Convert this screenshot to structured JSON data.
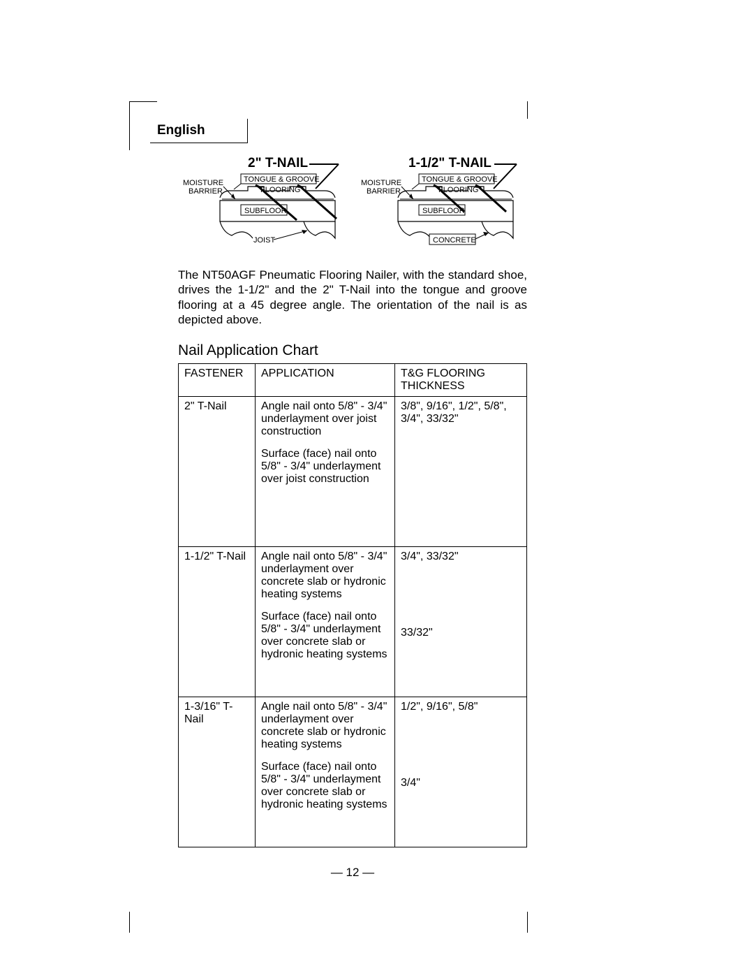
{
  "lang_label": "English",
  "diagram_left": {
    "title": "2\" T-NAIL",
    "moisture": "MOISTURE",
    "barrier": "BARRIER",
    "tg1": "TONGUE & GROOVE",
    "tg2": "FLOORING",
    "subfloor": "SUBFLOOR",
    "bottom": "JOIST",
    "bottom_boxed": false
  },
  "diagram_right": {
    "title": "1-1/2\" T-NAIL",
    "moisture": "MOISTURE",
    "barrier": "BARRIER",
    "tg1": "TONGUE & GROOVE",
    "tg2": "FLOORING",
    "subfloor": "SUBFLOOR",
    "bottom": "CONCRETE",
    "bottom_boxed": true
  },
  "paragraph": "The NT50AGF Pneumatic Flooring Nailer, with the standard shoe, drives the 1-1/2\" and the 2\" T-Nail into the tongue and groove flooring at a 45 degree angle. The orientation of the nail is as depicted above.",
  "section_heading": "Nail Application Chart",
  "table": {
    "columns": [
      "FASTENER",
      "APPLICATION",
      "T&G FLOORING THICKNESS"
    ],
    "rows": [
      {
        "fastener": "2\" T-Nail",
        "apps": [
          {
            "app": "Angle nail onto 5/8\" - 3/4\" underlayment over joist construction",
            "thk": "3/8\", 9/16\", 1/2\", 5/8\", 3/4\", 33/32\""
          },
          {
            "app": "Surface (face) nail onto 5/8\" - 3/4\" underlayment over joist construction",
            "thk": ""
          }
        ]
      },
      {
        "fastener": "1-1/2\" T-Nail",
        "apps": [
          {
            "app": "Angle nail onto 5/8\" - 3/4\" underlayment over concrete slab or hydronic heating systems",
            "thk": "3/4\", 33/32\""
          },
          {
            "app": "Surface (face) nail onto 5/8\" - 3/4\" underlayment over concrete slab or hydronic heating systems",
            "thk": "33/32\""
          }
        ]
      },
      {
        "fastener": "1-3/16\" T-Nail",
        "apps": [
          {
            "app": "Angle nail onto 5/8\" - 3/4\" underlayment over concrete slab or hydronic heating systems",
            "thk": "1/2\", 9/16\", 5/8\""
          },
          {
            "app": "Surface (face) nail onto 5/8\" - 3/4\" underlayment over concrete slab or hydronic heating systems",
            "thk": "3/4\""
          }
        ]
      }
    ]
  },
  "page_number": "— 12 —",
  "style": {
    "stroke": "#000000",
    "nail_stroke_width": 3,
    "outline_stroke_width": 1.2,
    "font_small": 11
  }
}
